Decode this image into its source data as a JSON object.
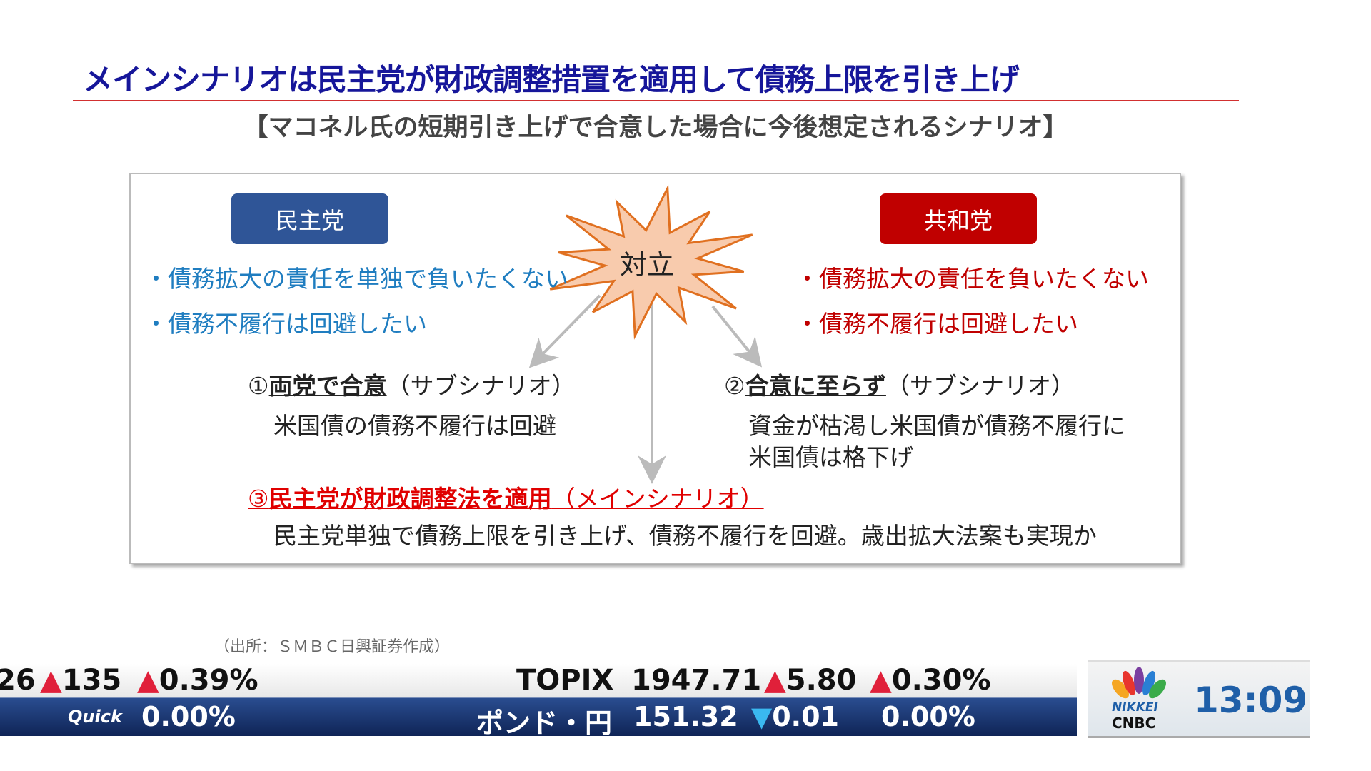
{
  "slide": {
    "title": "メインシナリオは民主党が財政調整措置を適用して債務上限を引き上げ",
    "subtitle": "【マコネル氏の短期引き上げで合意した場合に今後想定されるシナリオ】",
    "democrats": {
      "label": "民主党",
      "points": [
        "・債務拡大の責任を単独で負いたくない",
        "・債務不履行は回避したい"
      ],
      "color": "#2f5597"
    },
    "republicans": {
      "label": "共和党",
      "points": [
        "・債務拡大の責任を負いたくない",
        "・債務不履行は回避したい"
      ],
      "color": "#c00000"
    },
    "conflict": "対立",
    "scenario1": {
      "num": "①",
      "title": "両党で合意",
      "tag": "（サブシナリオ）",
      "desc": "米国債の債務不履行は回避"
    },
    "scenario2": {
      "num": "②",
      "title": "合意に至らず",
      "tag": "（サブシナリオ）",
      "desc1": "資金が枯渇し米国債が債務不履行に",
      "desc2": "米国債は格下げ"
    },
    "scenario3": {
      "num": "③",
      "title": "民主党が財政調整法を適用",
      "tag": "（メインシナリオ）",
      "desc": "民主党単独で債務上限を引き上げ、債務不履行を回避。歳出拡大法案も実現か"
    },
    "source": "（出所：ＳＭＢＣ日興証券作成）"
  },
  "ticker": {
    "top": {
      "left_value": "26",
      "left_change": "135",
      "left_pct": "0.39%",
      "name": "TOPIX",
      "value": "1947.71",
      "change": "5.80",
      "pct": "0.30%"
    },
    "bottom": {
      "quick_label": "Quick",
      "quick_pct": "0.00%",
      "name": "ポンド・円",
      "value": "151.32",
      "change": "0.01",
      "pct": "0.00%"
    },
    "up_icon": "triangle-up",
    "down_icon": "triangle-down"
  },
  "logo": {
    "line1": "NIKKEI",
    "line2": "CNBC"
  },
  "clock": "13:09"
}
